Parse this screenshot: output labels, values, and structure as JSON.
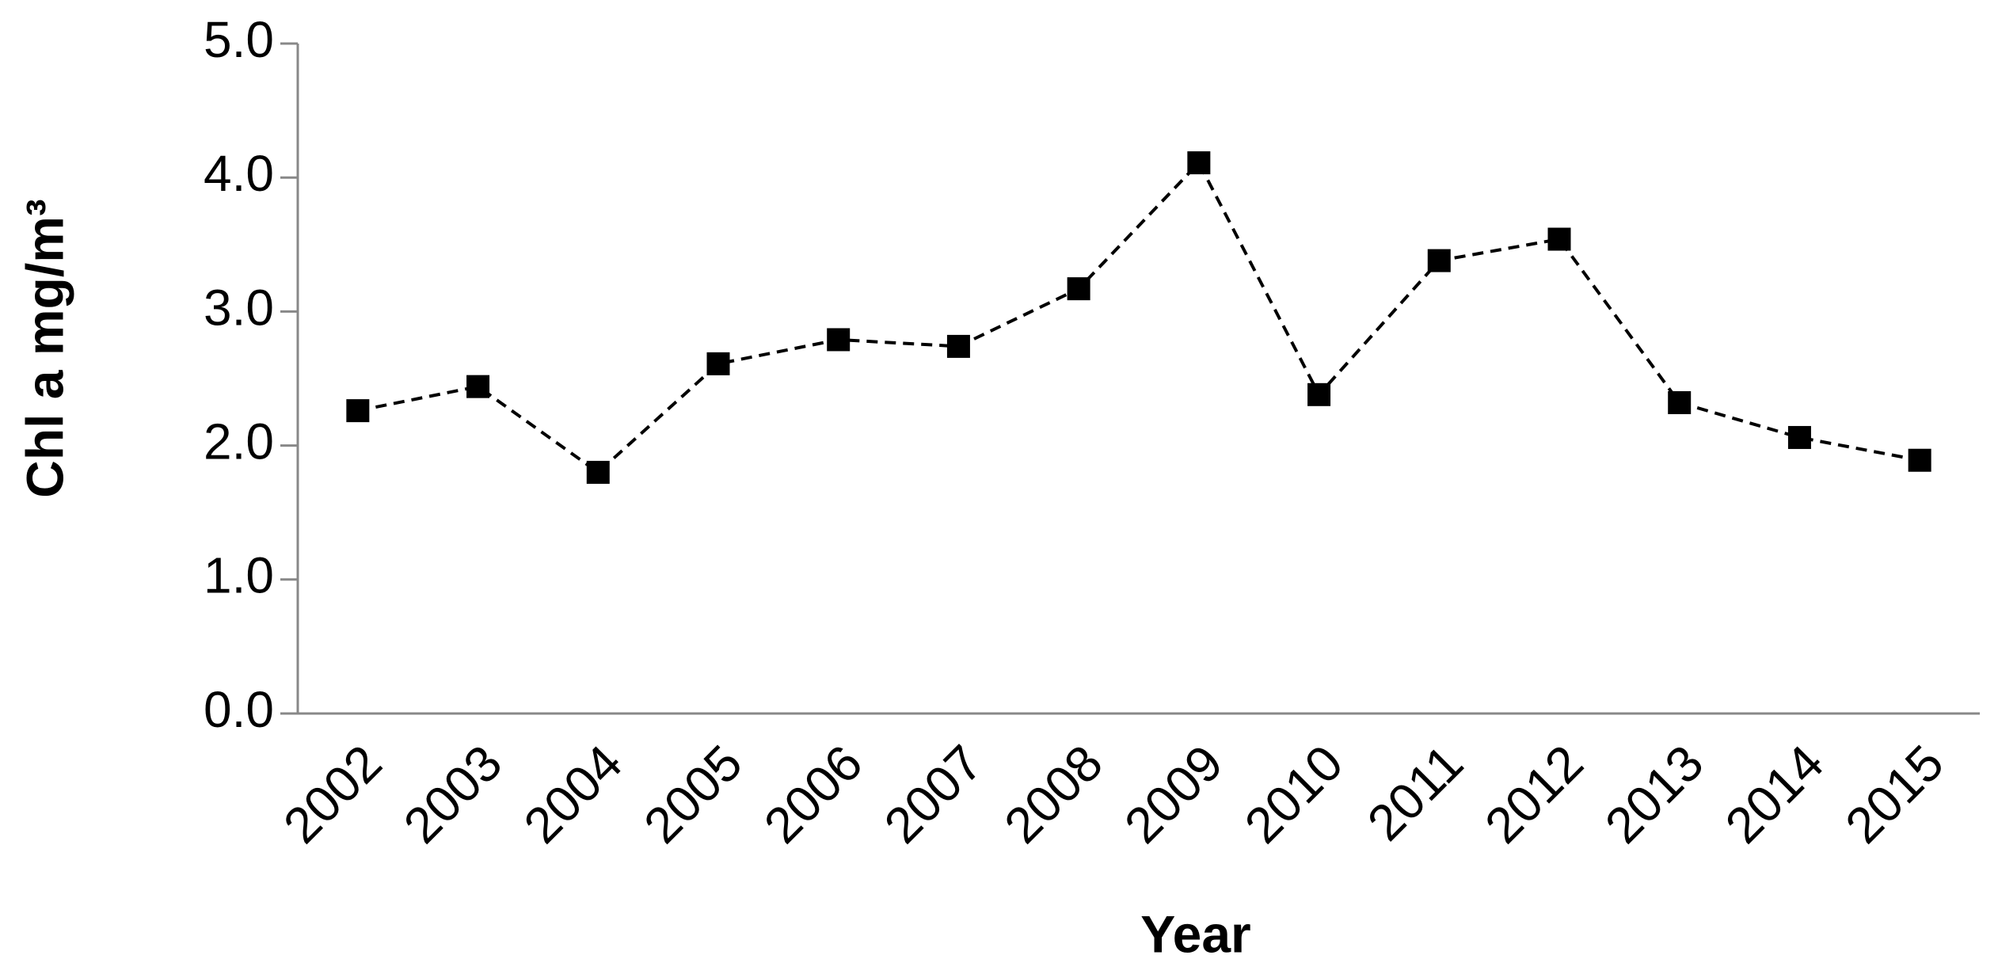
{
  "chart_data": {
    "type": "line",
    "y_label": "Chl a mg/m³",
    "x_label": "Year",
    "categories": [
      "2002",
      "2003",
      "2004",
      "2005",
      "2006",
      "2007",
      "2008",
      "2009",
      "2010",
      "2011",
      "2012",
      "2013",
      "2014",
      "2015"
    ],
    "values": [
      2.26,
      2.44,
      1.8,
      2.61,
      2.79,
      2.74,
      3.17,
      4.11,
      2.38,
      3.38,
      3.54,
      2.32,
      2.06,
      1.89
    ],
    "color": "#000000",
    "line_style": "dashed",
    "marker": "square",
    "ylim": [
      0,
      5
    ],
    "yticks": [
      {
        "value": 0,
        "label": "0.0"
      },
      {
        "value": 1,
        "label": "1.0"
      },
      {
        "value": 2,
        "label": "2.0"
      },
      {
        "value": 3,
        "label": "3.0"
      },
      {
        "value": 4,
        "label": "4.0"
      },
      {
        "value": 5,
        "label": "5.0"
      }
    ],
    "grid": false
  }
}
